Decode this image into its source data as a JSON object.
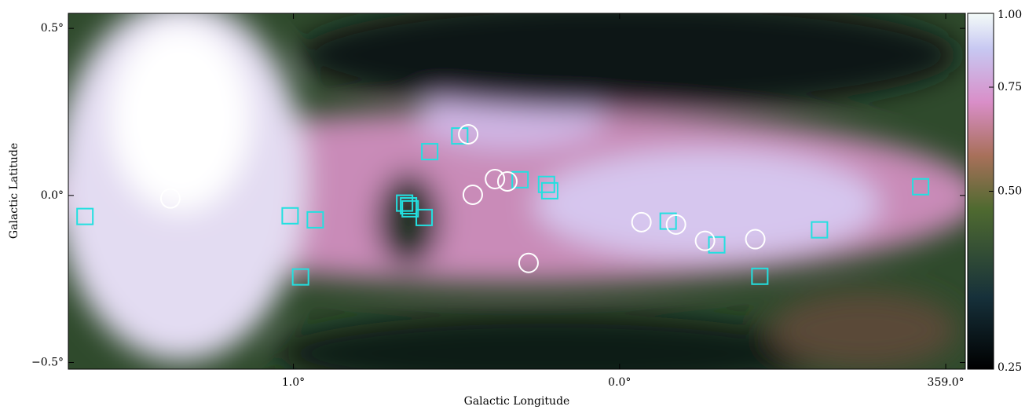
{
  "chart_data": {
    "type": "scatter",
    "xlabel": "Galactic Longitude",
    "ylabel": "Galactic Latitude",
    "xlim": [
      1.69,
      -1.06
    ],
    "ylim": [
      -0.52,
      0.545
    ],
    "xticks": [
      {
        "value": 1,
        "label": "1.0°"
      },
      {
        "value": 0,
        "label": "0.0°"
      },
      {
        "value": -1,
        "label": "359.0°"
      }
    ],
    "yticks": [
      {
        "value": 0.5,
        "label": "0.5°"
      },
      {
        "value": 0,
        "label": "0.0°"
      },
      {
        "value": -0.5,
        "label": "−0.5°"
      }
    ],
    "series": [
      {
        "marker": "square",
        "color": "#22e0e0",
        "x": [
          1.639,
          1.01,
          0.933,
          0.978,
          0.582,
          0.49,
          0.659,
          0.647,
          0.642,
          0.599,
          0.305,
          0.224,
          0.214,
          -0.149,
          -0.298,
          -0.43,
          -0.613,
          -0.923
        ],
        "values": [
          -0.063,
          -0.061,
          -0.073,
          -0.244,
          0.131,
          0.178,
          -0.023,
          -0.031,
          -0.04,
          -0.066,
          0.047,
          0.033,
          0.014,
          -0.077,
          -0.148,
          -0.242,
          -0.103,
          0.026
        ]
      },
      {
        "marker": "circle",
        "color": "#ffffff",
        "x": [
          1.377,
          0.464,
          0.45,
          0.382,
          0.344,
          0.279,
          -0.067,
          -0.173,
          -0.262,
          -0.416
        ],
        "values": [
          -0.009,
          0.183,
          0.002,
          0.049,
          0.042,
          -0.202,
          -0.08,
          -0.087,
          -0.136,
          -0.131
        ]
      }
    ],
    "colorbar": {
      "lim": [
        0.25,
        1
      ],
      "scale": "log",
      "ticks": [
        {
          "value": 1,
          "label": "1.00"
        },
        0.75,
        {
          "value": 0.5,
          "label": "0.50"
        },
        0.25
      ]
    }
  }
}
